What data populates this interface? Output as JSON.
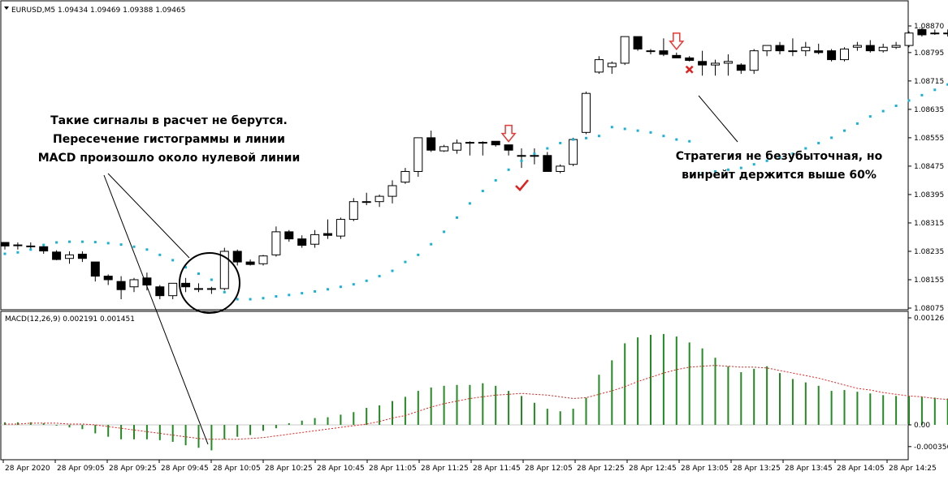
{
  "window": {
    "symbol_header": "EURUSD,M5  1.09434 1.09469 1.09388 1.09465",
    "indicator_header": "MACD(12,26,9) 0.002191 0.001451"
  },
  "annotations": {
    "left": [
      "Такие сигналы в расчет не берутся.",
      "Пересечение гистограммы и линии",
      "MACD произошло около нулевой линии"
    ],
    "right": [
      "Стратегия не безубыточная, но",
      "винрейт держится выше 60%"
    ]
  },
  "colors": {
    "bull_body": "#ffffff",
    "bear_body": "#000000",
    "sar": "#19b2d6",
    "macd_hist": "#228b22",
    "signal_line": "#e0201e",
    "arrow": "#e53935",
    "check": "#e0201e",
    "cross": "#e0201e"
  },
  "chart_data": [
    {
      "type": "candlestick",
      "title": "EURUSD,M5",
      "yticks": [
        "1.08870",
        "1.08795",
        "1.08715",
        "1.08635",
        "1.08555",
        "1.08475",
        "1.08395",
        "1.08315",
        "1.08235",
        "1.08155",
        "1.08075"
      ],
      "ylim": [
        1.08065,
        1.08893
      ],
      "xticks": [
        "28 Apr 2020",
        "28 Apr 09:05",
        "28 Apr 09:25",
        "28 Apr 09:45",
        "28 Apr 10:05",
        "28 Apr 10:25",
        "28 Apr 10:45",
        "28 Apr 11:05",
        "28 Apr 11:25",
        "28 Apr 11:45",
        "28 Apr 12:05",
        "28 Apr 12:25",
        "28 Apr 12:45",
        "28 Apr 13:05",
        "28 Apr 13:25",
        "28 Apr 13:45",
        "28 Apr 14:05",
        "28 Apr 14:25"
      ],
      "candles": [
        {
          "o": 1.0826,
          "h": 1.0826,
          "l": 1.0824,
          "c": 1.0825
        },
        {
          "o": 1.08253,
          "h": 1.0826,
          "l": 1.0824,
          "c": 1.08253
        },
        {
          "o": 1.0825,
          "h": 1.0826,
          "l": 1.08238,
          "c": 1.0825
        },
        {
          "o": 1.08248,
          "h": 1.08252,
          "l": 1.08228,
          "c": 1.08236
        },
        {
          "o": 1.08233,
          "h": 1.08238,
          "l": 1.0821,
          "c": 1.08212
        },
        {
          "o": 1.08215,
          "h": 1.08235,
          "l": 1.082,
          "c": 1.08225
        },
        {
          "o": 1.08227,
          "h": 1.08235,
          "l": 1.08205,
          "c": 1.08215
        },
        {
          "o": 1.08205,
          "h": 1.08205,
          "l": 1.0815,
          "c": 1.08165
        },
        {
          "o": 1.08165,
          "h": 1.0817,
          "l": 1.0814,
          "c": 1.08155
        },
        {
          "o": 1.0815,
          "h": 1.08165,
          "l": 1.081,
          "c": 1.08127
        },
        {
          "o": 1.08135,
          "h": 1.0816,
          "l": 1.0812,
          "c": 1.08155
        },
        {
          "o": 1.0816,
          "h": 1.08175,
          "l": 1.08125,
          "c": 1.0814
        },
        {
          "o": 1.08135,
          "h": 1.0814,
          "l": 1.081,
          "c": 1.0811
        },
        {
          "o": 1.0811,
          "h": 1.08145,
          "l": 1.081,
          "c": 1.08145
        },
        {
          "o": 1.08145,
          "h": 1.0816,
          "l": 1.0812,
          "c": 1.08135
        },
        {
          "o": 1.0813,
          "h": 1.08145,
          "l": 1.0812,
          "c": 1.0813
        },
        {
          "o": 1.0813,
          "h": 1.08135,
          "l": 1.08115,
          "c": 1.0813
        },
        {
          "o": 1.0813,
          "h": 1.08245,
          "l": 1.08125,
          "c": 1.08235
        },
        {
          "o": 1.08235,
          "h": 1.0824,
          "l": 1.08195,
          "c": 1.08205
        },
        {
          "o": 1.08205,
          "h": 1.08212,
          "l": 1.08195,
          "c": 1.08198
        },
        {
          "o": 1.082,
          "h": 1.08225,
          "l": 1.08195,
          "c": 1.08222
        },
        {
          "o": 1.08225,
          "h": 1.08305,
          "l": 1.0822,
          "c": 1.0829
        },
        {
          "o": 1.0829,
          "h": 1.08295,
          "l": 1.08262,
          "c": 1.0827
        },
        {
          "o": 1.0827,
          "h": 1.0828,
          "l": 1.08245,
          "c": 1.08252
        },
        {
          "o": 1.08255,
          "h": 1.08295,
          "l": 1.08245,
          "c": 1.08282
        },
        {
          "o": 1.08285,
          "h": 1.08325,
          "l": 1.0827,
          "c": 1.0828
        },
        {
          "o": 1.08278,
          "h": 1.0833,
          "l": 1.0827,
          "c": 1.08325
        },
        {
          "o": 1.08325,
          "h": 1.08385,
          "l": 1.0832,
          "c": 1.08375
        },
        {
          "o": 1.08375,
          "h": 1.084,
          "l": 1.08365,
          "c": 1.08375
        },
        {
          "o": 1.08375,
          "h": 1.08395,
          "l": 1.0836,
          "c": 1.0839
        },
        {
          "o": 1.0839,
          "h": 1.08435,
          "l": 1.0837,
          "c": 1.0842
        },
        {
          "o": 1.0843,
          "h": 1.0847,
          "l": 1.08425,
          "c": 1.0846
        },
        {
          "o": 1.0846,
          "h": 1.08555,
          "l": 1.08445,
          "c": 1.08555
        },
        {
          "o": 1.08555,
          "h": 1.08575,
          "l": 1.08515,
          "c": 1.0852
        },
        {
          "o": 1.08518,
          "h": 1.08535,
          "l": 1.08515,
          "c": 1.0853
        },
        {
          "o": 1.0852,
          "h": 1.0855,
          "l": 1.0851,
          "c": 1.0854
        },
        {
          "o": 1.08542,
          "h": 1.08545,
          "l": 1.08505,
          "c": 1.08542
        },
        {
          "o": 1.08542,
          "h": 1.08545,
          "l": 1.08505,
          "c": 1.0854
        },
        {
          "o": 1.08545,
          "h": 1.08545,
          "l": 1.0853,
          "c": 1.08535
        },
        {
          "o": 1.08535,
          "h": 1.08535,
          "l": 1.08505,
          "c": 1.0852
        },
        {
          "o": 1.08505,
          "h": 1.08525,
          "l": 1.0847,
          "c": 1.08505
        },
        {
          "o": 1.08505,
          "h": 1.08525,
          "l": 1.0848,
          "c": 1.08505
        },
        {
          "o": 1.08505,
          "h": 1.08515,
          "l": 1.0846,
          "c": 1.0846
        },
        {
          "o": 1.0846,
          "h": 1.0848,
          "l": 1.08455,
          "c": 1.08475
        },
        {
          "o": 1.0848,
          "h": 1.08555,
          "l": 1.08475,
          "c": 1.0855
        },
        {
          "o": 1.0857,
          "h": 1.08685,
          "l": 1.08565,
          "c": 1.0868
        },
        {
          "o": 1.0874,
          "h": 1.08785,
          "l": 1.08735,
          "c": 1.08775
        },
        {
          "o": 1.08755,
          "h": 1.0877,
          "l": 1.08735,
          "c": 1.08765
        },
        {
          "o": 1.08765,
          "h": 1.0884,
          "l": 1.0876,
          "c": 1.0884
        },
        {
          "o": 1.0884,
          "h": 1.0884,
          "l": 1.088,
          "c": 1.08805
        },
        {
          "o": 1.088,
          "h": 1.08805,
          "l": 1.0879,
          "c": 1.088
        },
        {
          "o": 1.088,
          "h": 1.08835,
          "l": 1.08785,
          "c": 1.0879
        },
        {
          "o": 1.08787,
          "h": 1.08795,
          "l": 1.0878,
          "c": 1.0878
        },
        {
          "o": 1.0878,
          "h": 1.08785,
          "l": 1.0877,
          "c": 1.08773
        },
        {
          "o": 1.0877,
          "h": 1.088,
          "l": 1.0873,
          "c": 1.0876
        },
        {
          "o": 1.0876,
          "h": 1.08775,
          "l": 1.0873,
          "c": 1.08765
        },
        {
          "o": 1.08765,
          "h": 1.0879,
          "l": 1.0873,
          "c": 1.0877
        },
        {
          "o": 1.0876,
          "h": 1.08765,
          "l": 1.08735,
          "c": 1.08745
        },
        {
          "o": 1.08745,
          "h": 1.08805,
          "l": 1.08735,
          "c": 1.088
        },
        {
          "o": 1.088,
          "h": 1.08815,
          "l": 1.08785,
          "c": 1.08815
        },
        {
          "o": 1.08815,
          "h": 1.08825,
          "l": 1.0879,
          "c": 1.088
        },
        {
          "o": 1.088,
          "h": 1.08835,
          "l": 1.08785,
          "c": 1.088
        },
        {
          "o": 1.088,
          "h": 1.08825,
          "l": 1.08785,
          "c": 1.0881
        },
        {
          "o": 1.088,
          "h": 1.0882,
          "l": 1.0879,
          "c": 1.08795
        },
        {
          "o": 1.088,
          "h": 1.08805,
          "l": 1.0877,
          "c": 1.08775
        },
        {
          "o": 1.08775,
          "h": 1.0881,
          "l": 1.0877,
          "c": 1.08805
        },
        {
          "o": 1.0881,
          "h": 1.08825,
          "l": 1.088,
          "c": 1.08815
        },
        {
          "o": 1.08815,
          "h": 1.0883,
          "l": 1.08795,
          "c": 1.088
        },
        {
          "o": 1.088,
          "h": 1.0882,
          "l": 1.08795,
          "c": 1.0881
        },
        {
          "o": 1.0881,
          "h": 1.08825,
          "l": 1.08805,
          "c": 1.08815
        },
        {
          "o": 1.08815,
          "h": 1.08855,
          "l": 1.0881,
          "c": 1.0885
        },
        {
          "o": 1.0886,
          "h": 1.08865,
          "l": 1.0884,
          "c": 1.08845
        },
        {
          "o": 1.0885,
          "h": 1.0886,
          "l": 1.08845,
          "c": 1.0885
        },
        {
          "o": 1.0885,
          "h": 1.0886,
          "l": 1.0884,
          "c": 1.0885
        }
      ],
      "sar": [
        1.08228,
        1.08232,
        1.0824,
        1.08253,
        1.0826,
        1.08262,
        1.08262,
        1.08261,
        1.08258,
        1.08254,
        1.08248,
        1.0824,
        1.08225,
        1.0821,
        1.0819,
        1.08172,
        1.08155,
        1.0812,
        1.081,
        1.081,
        1.08103,
        1.08108,
        1.08112,
        1.08117,
        1.08122,
        1.08128,
        1.08135,
        1.08142,
        1.08152,
        1.08165,
        1.0818,
        1.08205,
        1.08225,
        1.08255,
        1.0829,
        1.0833,
        1.0837,
        1.08405,
        1.08435,
        1.08465,
        1.0849,
        1.0851,
        1.08525,
        1.0854,
        1.0855,
        1.08554,
        1.0856,
        1.08585,
        1.0858,
        1.08575,
        1.0857,
        1.0856,
        1.0855,
        1.08545,
        1.08455,
        1.0846,
        1.08465,
        1.0847,
        1.0848,
        1.0849,
        1.085,
        1.0851,
        1.08525,
        1.0854,
        1.08555,
        1.08575,
        1.08595,
        1.08615,
        1.0863,
        1.08645,
        1.0866,
        1.08675,
        1.0869,
        1.08705,
        1.0872
      ],
      "sar_note": "",
      "markers": [
        {
          "type": "down-arrow",
          "index": 39
        },
        {
          "type": "check",
          "index": 40
        },
        {
          "type": "down-arrow",
          "index": 52
        },
        {
          "type": "cross",
          "index": 53
        }
      ]
    },
    {
      "type": "bar",
      "title": "MACD(12,26,9)",
      "yticks": [
        "0.00126",
        "0.00",
        "-0.000356"
      ],
      "ylim": [
        -0.000356,
        0.00126
      ],
      "histogram": [
        3e-05,
        3e-05,
        3e-05,
        2e-05,
        0.0,
        -3e-05,
        -5e-05,
        -0.0001,
        -0.00014,
        -0.00017,
        -0.00017,
        -0.00017,
        -0.00018,
        -0.0002,
        -0.00024,
        -0.00027,
        -0.0003,
        -0.00017,
        -0.00014,
        -0.00012,
        -7e-05,
        -4e-05,
        2e-05,
        5e-05,
        8e-05,
        9e-05,
        0.00012,
        0.00015,
        0.0002,
        0.00023,
        0.00028,
        0.00033,
        0.0004,
        0.00044,
        0.00046,
        0.00047,
        0.00047,
        0.00049,
        0.00046,
        0.0004,
        0.00034,
        0.00026,
        0.00019,
        0.00016,
        0.00019,
        0.00032,
        0.00059,
        0.00076,
        0.00096,
        0.00103,
        0.00106,
        0.00107,
        0.00104,
        0.00097,
        0.0009,
        0.00079,
        0.00069,
        0.00062,
        0.00066,
        0.00069,
        0.00061,
        0.00054,
        0.0005,
        0.00046,
        0.0004,
        0.00041,
        0.00039,
        0.00037,
        0.00035,
        0.00034,
        0.00034,
        0.00033,
        0.00032,
        0.00031,
        0.0003
      ],
      "signal": [
        1e-05,
        1e-05,
        2e-05,
        2e-05,
        2e-05,
        1e-05,
        1e-05,
        0.0,
        -2e-05,
        -4e-05,
        -6e-05,
        -8e-05,
        -0.0001,
        -0.00012,
        -0.00014,
        -0.00016,
        -0.00017,
        -0.00017,
        -0.00017,
        -0.00016,
        -0.00015,
        -0.00013,
        -0.00011,
        -9e-05,
        -7e-05,
        -5e-05,
        -3e-05,
        -1e-05,
        1e-05,
        4e-05,
        8e-05,
        0.00011,
        0.00016,
        0.00021,
        0.00025,
        0.00028,
        0.00031,
        0.00033,
        0.00035,
        0.00036,
        0.00037,
        0.00036,
        0.00035,
        0.00033,
        0.00031,
        0.00032,
        0.00036,
        0.0004,
        0.00045,
        0.00051,
        0.00056,
        0.00061,
        0.00065,
        0.00068,
        0.00069,
        0.0007,
        0.00069,
        0.00068,
        0.00068,
        0.00067,
        0.00064,
        0.00061,
        0.00058,
        0.00055,
        0.00051,
        0.00047,
        0.00043,
        0.00041,
        0.00038,
        0.00036,
        0.00034,
        0.00033,
        0.00031,
        0.0003,
        0.00029
      ]
    }
  ]
}
